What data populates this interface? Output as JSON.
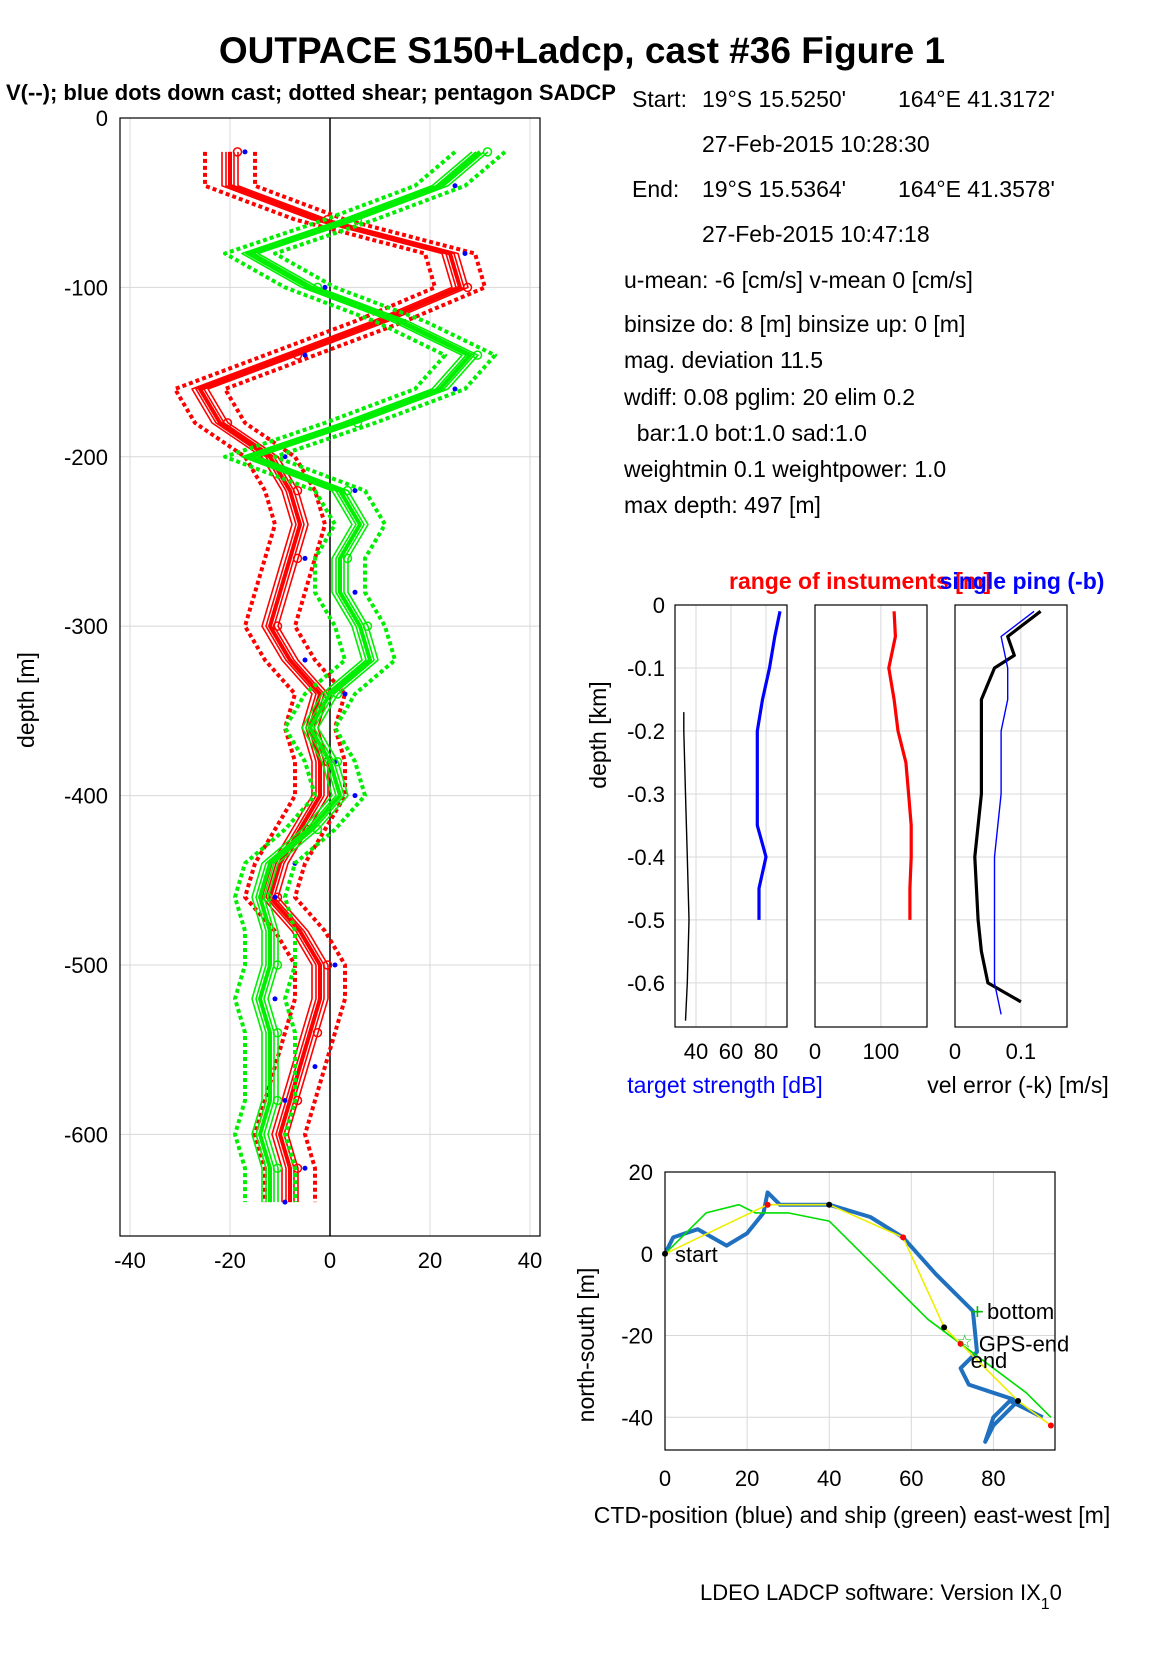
{
  "figure": {
    "title": "OUTPACE S150+Ladcp, cast #36  Figure 1",
    "subtitle": "V(--); blue dots down cast; dotted shear; pentagon SADCP",
    "footer": "LDEO LADCP software: Version IX",
    "footer_sub": "1",
    "footer_tail": "0"
  },
  "info": {
    "start_label": "Start:",
    "start_lat": "19°S 15.5250'",
    "start_lon": "164°E 41.3172'",
    "start_time": "27-Feb-2015 10:28:30",
    "end_label": "End:",
    "end_lat": "19°S 15.5364'",
    "end_lon": "164°E 41.3578'",
    "end_time": "27-Feb-2015 10:47:18",
    "umean": "u-mean:  -6 [cm/s]    v-mean   0 [cm/s]",
    "binsize": "binsize do: 8 [m]  binsize up:  0 [m]",
    "magdev": "mag. deviation 11.5",
    "wdiff": "wdiff: 0.08  pglim: 20  elim 0.2",
    "bar": "  bar:1.0 bot:1.0 sad:1.0",
    "weight": "weightmin 0.1  weightpower: 1.0",
    "maxdepth": "max depth: 497 [m]"
  },
  "chart_data": [
    {
      "id": "velocity-profile",
      "type": "line",
      "ylabel": "depth [m]",
      "xlabel": "",
      "xlim": [
        -42,
        42
      ],
      "ylim": [
        -660,
        0
      ],
      "xticks": [
        "-40",
        "-20",
        "0",
        "20",
        "40"
      ],
      "yticks": [
        "0",
        "-100",
        "-200",
        "-300",
        "-400",
        "-500",
        "-600"
      ],
      "grid": true,
      "colors": {
        "u": "#ff0000",
        "v": "#00ee00",
        "dots": "#0000ff"
      },
      "depth": [
        -20,
        -40,
        -60,
        -80,
        -100,
        -120,
        -140,
        -160,
        -180,
        -200,
        -220,
        -240,
        -260,
        -280,
        -300,
        -320,
        -340,
        -360,
        -380,
        -400,
        -420,
        -440,
        -460,
        -480,
        -500,
        -520,
        -540,
        -560,
        -580,
        -600,
        -620,
        -640
      ],
      "series": [
        {
          "values": [
            -20,
            -20,
            -2,
            24,
            26,
            10,
            -8,
            -26,
            -22,
            -12,
            -8,
            -6,
            -8,
            -10,
            -12,
            -8,
            -2,
            -4,
            -2,
            -2,
            -6,
            -10,
            -12,
            -6,
            -2,
            -2,
            -4,
            -6,
            -8,
            -10,
            -8,
            -8
          ]
        },
        {
          "values": [
            30,
            22,
            4,
            -16,
            -4,
            14,
            28,
            22,
            4,
            -16,
            2,
            6,
            2,
            2,
            6,
            8,
            0,
            -4,
            0,
            2,
            -4,
            -12,
            -14,
            -12,
            -12,
            -14,
            -12,
            -12,
            -12,
            -14,
            -12,
            -12
          ]
        }
      ]
    },
    {
      "id": "target-strength",
      "type": "line",
      "title": "range of instuments [m]",
      "ylabel": "depth [km]",
      "xlabel": "target strength [dB]",
      "xlim": [
        28,
        92
      ],
      "ylim": [
        -0.67,
        0
      ],
      "xticks": [
        "40",
        "60",
        "80"
      ],
      "yticks": [
        "0",
        "-0.1",
        "-0.2",
        "-0.3",
        "-0.4",
        "-0.5",
        "-0.6"
      ],
      "series": [
        {
          "name": "ts-blue",
          "color": "#0000ff",
          "depth": [
            -0.01,
            -0.05,
            -0.1,
            -0.15,
            -0.2,
            -0.25,
            -0.3,
            -0.35,
            -0.4,
            -0.45,
            -0.5
          ],
          "values": [
            88,
            85,
            82,
            78,
            75,
            75,
            75,
            75,
            80,
            76,
            76
          ]
        },
        {
          "name": "ts-black",
          "color": "#000000",
          "depth": [
            -0.17,
            -0.2,
            -0.3,
            -0.4,
            -0.5,
            -0.6,
            -0.66
          ],
          "values": [
            33,
            33,
            34,
            35,
            36,
            35,
            34
          ]
        }
      ]
    },
    {
      "id": "range",
      "type": "line",
      "xlim": [
        0,
        170
      ],
      "ylim": [
        -0.67,
        0
      ],
      "xticks": [
        "0",
        "100"
      ],
      "series": [
        {
          "name": "range",
          "color": "#ff0000",
          "depth": [
            -0.01,
            -0.05,
            -0.1,
            -0.15,
            -0.2,
            -0.25,
            -0.3,
            -0.35,
            -0.4,
            -0.45,
            -0.5
          ],
          "values": [
            120,
            122,
            112,
            120,
            126,
            138,
            142,
            146,
            146,
            144,
            144
          ]
        }
      ]
    },
    {
      "id": "velocity-error",
      "type": "line",
      "title": "single ping (-b)",
      "xlabel": "vel error (-k) [m/s]",
      "xlim": [
        0,
        0.17
      ],
      "ylim": [
        -0.67,
        0
      ],
      "xticks": [
        "0",
        "0.1"
      ],
      "series": [
        {
          "name": "vel-error",
          "color": "#000000",
          "depth": [
            -0.01,
            -0.05,
            -0.08,
            -0.1,
            -0.15,
            -0.2,
            -0.3,
            -0.4,
            -0.5,
            -0.55,
            -0.6,
            -0.63
          ],
          "values": [
            0.13,
            0.08,
            0.09,
            0.06,
            0.04,
            0.04,
            0.04,
            0.03,
            0.035,
            0.04,
            0.05,
            0.1
          ]
        },
        {
          "name": "single-ping",
          "color": "#0000ff",
          "depth": [
            -0.01,
            -0.05,
            -0.1,
            -0.15,
            -0.2,
            -0.3,
            -0.4,
            -0.5,
            -0.6,
            -0.65
          ],
          "values": [
            0.12,
            0.07,
            0.08,
            0.08,
            0.07,
            0.07,
            0.06,
            0.06,
            0.06,
            0.07
          ]
        }
      ]
    },
    {
      "id": "position",
      "type": "line",
      "xlabel": "CTD-position (blue) and ship (green) east-west [m]",
      "ylabel": "north-south [m]",
      "xlim": [
        0,
        95
      ],
      "ylim": [
        -48,
        20
      ],
      "xticks": [
        "0",
        "20",
        "40",
        "60",
        "80"
      ],
      "yticks": [
        "20",
        "0",
        "-20",
        "-40"
      ],
      "annotations": [
        "start",
        "bottom",
        "GPS-end",
        "end"
      ],
      "series": [
        {
          "name": "ctd",
          "color": "#2070c0",
          "x": [
            0,
            2,
            8,
            15,
            20,
            24,
            25,
            28,
            40,
            50,
            58,
            66,
            75,
            76,
            74,
            72,
            74,
            80,
            86,
            84,
            80,
            78,
            80,
            84,
            88,
            92
          ],
          "y": [
            0,
            4,
            6,
            2,
            5,
            10,
            15,
            12,
            12,
            9,
            4,
            -5,
            -14,
            -24,
            -26,
            -28,
            -32,
            -34,
            -36,
            -38,
            -42,
            -46,
            -40,
            -36,
            -38,
            -40
          ]
        },
        {
          "name": "ship",
          "color": "#00dd00",
          "x": [
            0,
            10,
            18,
            22,
            30,
            40,
            48,
            56,
            64,
            72,
            80,
            88,
            94
          ],
          "y": [
            0,
            10,
            12,
            10,
            10,
            8,
            0,
            -8,
            -16,
            -22,
            -28,
            -34,
            -40
          ]
        },
        {
          "name": "track",
          "color": "#eeee00",
          "x": [
            0,
            25,
            40,
            58,
            68,
            72,
            86,
            94
          ],
          "y": [
            0,
            12,
            12,
            4,
            -18,
            -22,
            -36,
            -42
          ]
        }
      ]
    }
  ]
}
